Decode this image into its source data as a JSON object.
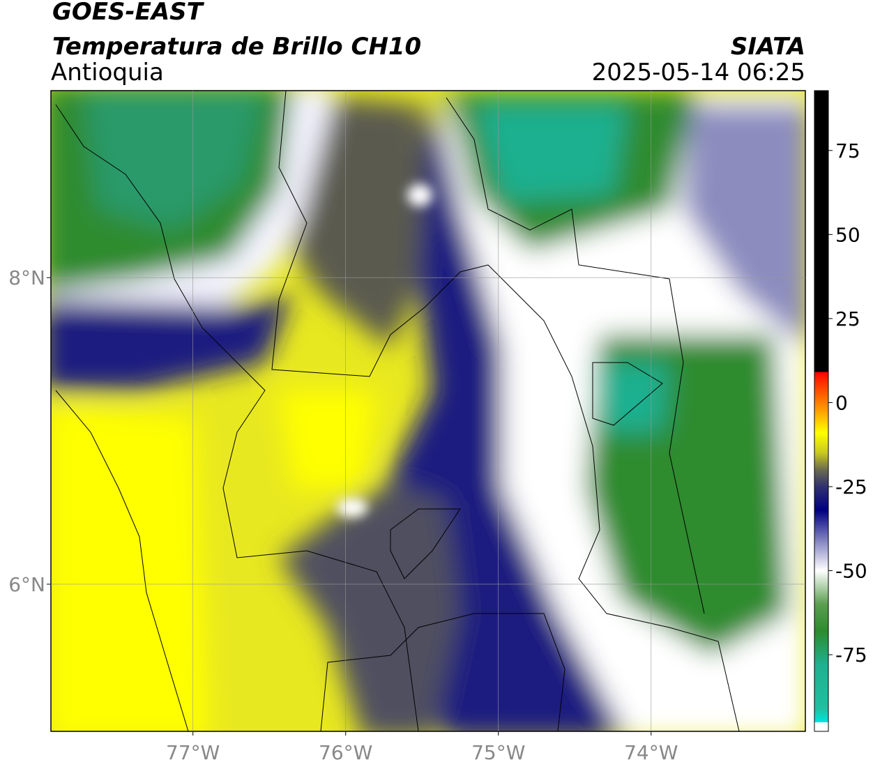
{
  "header": {
    "title": "GOES-EAST",
    "subtitle": "Temperatura de Brillo CH10",
    "region": "Antioquia",
    "source": "SIATA",
    "datetime": "2025-05-14 06:25"
  },
  "map": {
    "xlim": [
      -77.93,
      -72.99
    ],
    "ylim": [
      5.04,
      9.22
    ],
    "xticks": [
      {
        "value": -77,
        "label": "77°W"
      },
      {
        "value": -76,
        "label": "76°W"
      },
      {
        "value": -75,
        "label": "75°W"
      },
      {
        "value": -74,
        "label": "74°W"
      }
    ],
    "yticks": [
      {
        "value": 6,
        "label": "6°N"
      },
      {
        "value": 8,
        "label": "8°N"
      }
    ],
    "grid": true
  },
  "colorbar": {
    "lim": [
      -97.8,
      92.8
    ],
    "ticks": [
      -75,
      -50,
      -25,
      0,
      25,
      50,
      75
    ],
    "stops": [
      {
        "value": -97.8,
        "color": "#ffffff"
      },
      {
        "value": -95.2,
        "color": "#ffffff"
      },
      {
        "value": -95,
        "color": "#00e5dc"
      },
      {
        "value": -91,
        "color": "#20c0a0"
      },
      {
        "value": -78,
        "color": "#1fb090"
      },
      {
        "value": -68,
        "color": "#2e8b2e"
      },
      {
        "value": -60,
        "color": "#5a9e50"
      },
      {
        "value": -50,
        "color": "#ffffff"
      },
      {
        "value": -42,
        "color": "#9090c8"
      },
      {
        "value": -32,
        "color": "#000080"
      },
      {
        "value": -25,
        "color": "#303070"
      },
      {
        "value": -20,
        "color": "#6a6a50"
      },
      {
        "value": -15,
        "color": "#c8c820"
      },
      {
        "value": -9,
        "color": "#ffff00"
      },
      {
        "value": -2,
        "color": "#ff9900"
      },
      {
        "value": 7,
        "color": "#ff2000"
      },
      {
        "value": 9,
        "color": "#ff0000"
      },
      {
        "value": 9.2,
        "color": "#000000"
      },
      {
        "value": 92.8,
        "color": "#000000"
      }
    ]
  }
}
